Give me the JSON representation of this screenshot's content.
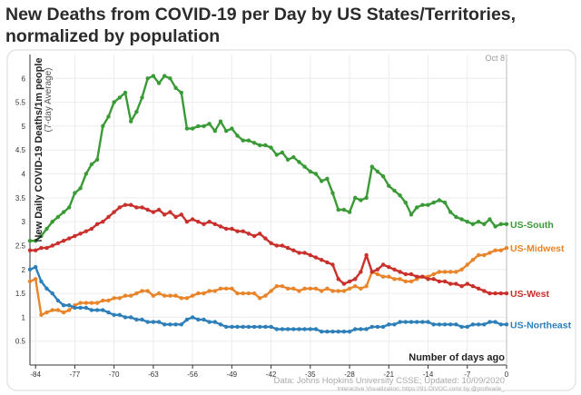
{
  "title_line1": "New Deaths from COVID-19 per Day by US States/Territories,",
  "title_line2": "normalized by population",
  "chart_data": {
    "type": "line",
    "title": "New Deaths from COVID-19 per Day by US States/Territories, normalized by population",
    "ylabel": "New Daily COVID-19 Deaths/1m people",
    "ylabel_sub": "(7-day Average)",
    "xlabel": "Number of days ago",
    "date_label": "Oct 8",
    "source": "Data: Johns Hopkins University CSSE; Updated: 10/09/2020",
    "credit": "Interactive Visualization: https://91-DIVOC.com/ by @profwade_",
    "xlim": [
      -85,
      0
    ],
    "ylim": [
      0,
      6.5
    ],
    "xticks": [
      -84,
      -77,
      -70,
      -63,
      -56,
      -49,
      -42,
      -35,
      -28,
      -21,
      -14,
      -7,
      0
    ],
    "yticks": [
      0.5,
      1,
      1.5,
      2,
      2.5,
      3,
      3.5,
      4,
      4.5,
      5,
      5.5,
      6
    ],
    "x": [
      -85,
      -84,
      -83,
      -82,
      -81,
      -80,
      -79,
      -78,
      -77,
      -76,
      -75,
      -74,
      -73,
      -72,
      -71,
      -70,
      -69,
      -68,
      -67,
      -66,
      -65,
      -64,
      -63,
      -62,
      -61,
      -60,
      -59,
      -58,
      -57,
      -56,
      -55,
      -54,
      -53,
      -52,
      -51,
      -50,
      -49,
      -48,
      -47,
      -46,
      -45,
      -44,
      -43,
      -42,
      -41,
      -40,
      -39,
      -38,
      -37,
      -36,
      -35,
      -34,
      -33,
      -32,
      -31,
      -30,
      -29,
      -28,
      -27,
      -26,
      -25,
      -24,
      -23,
      -22,
      -21,
      -20,
      -19,
      -18,
      -17,
      -16,
      -15,
      -14,
      -13,
      -12,
      -11,
      -10,
      -9,
      -8,
      -7,
      -6,
      -5,
      -4,
      -3,
      -2,
      -1,
      0
    ],
    "series": [
      {
        "name": "US-South",
        "color": "#3a9a36",
        "values": [
          2.6,
          2.6,
          2.7,
          2.85,
          3.0,
          3.1,
          3.2,
          3.3,
          3.6,
          3.7,
          4.0,
          4.2,
          4.3,
          5.0,
          5.2,
          5.5,
          5.6,
          5.7,
          5.1,
          5.3,
          5.6,
          6.0,
          6.05,
          5.9,
          6.05,
          6.0,
          5.8,
          5.7,
          4.95,
          4.95,
          5.0,
          5.0,
          5.05,
          4.9,
          5.1,
          4.9,
          4.95,
          4.8,
          4.7,
          4.7,
          4.65,
          4.6,
          4.6,
          4.55,
          4.4,
          4.45,
          4.3,
          4.35,
          4.25,
          4.15,
          4.05,
          4.0,
          3.85,
          3.9,
          3.6,
          3.25,
          3.25,
          3.2,
          3.5,
          3.45,
          3.5,
          4.15,
          4.05,
          3.95,
          3.75,
          3.65,
          3.55,
          3.4,
          3.15,
          3.3,
          3.35,
          3.35,
          3.4,
          3.45,
          3.4,
          3.2,
          3.1,
          3.05,
          3.0,
          2.95,
          3.0,
          2.95,
          3.05,
          2.9,
          2.95,
          2.95
        ]
      },
      {
        "name": "US-Midwest",
        "color": "#e8852a",
        "values": [
          1.75,
          1.8,
          1.05,
          1.1,
          1.15,
          1.15,
          1.1,
          1.15,
          1.25,
          1.3,
          1.3,
          1.3,
          1.3,
          1.35,
          1.35,
          1.4,
          1.4,
          1.45,
          1.45,
          1.5,
          1.55,
          1.55,
          1.45,
          1.5,
          1.45,
          1.45,
          1.45,
          1.4,
          1.4,
          1.45,
          1.5,
          1.5,
          1.55,
          1.55,
          1.6,
          1.6,
          1.6,
          1.5,
          1.5,
          1.5,
          1.5,
          1.4,
          1.45,
          1.55,
          1.65,
          1.65,
          1.6,
          1.6,
          1.55,
          1.6,
          1.6,
          1.6,
          1.55,
          1.6,
          1.55,
          1.55,
          1.55,
          1.6,
          1.65,
          1.6,
          1.65,
          1.95,
          1.9,
          1.85,
          1.85,
          1.8,
          1.8,
          1.75,
          1.75,
          1.8,
          1.85,
          1.85,
          1.9,
          1.95,
          1.95,
          1.95,
          1.95,
          2.0,
          2.1,
          2.2,
          2.3,
          2.3,
          2.35,
          2.4,
          2.4,
          2.45
        ]
      },
      {
        "name": "US-West",
        "color": "#c9302c",
        "values": [
          2.4,
          2.4,
          2.45,
          2.45,
          2.5,
          2.55,
          2.6,
          2.65,
          2.7,
          2.75,
          2.8,
          2.85,
          2.95,
          3.0,
          3.1,
          3.2,
          3.3,
          3.35,
          3.35,
          3.3,
          3.3,
          3.25,
          3.2,
          3.25,
          3.15,
          3.2,
          3.1,
          3.15,
          3.0,
          3.05,
          3.0,
          2.95,
          3.0,
          2.95,
          2.9,
          2.85,
          2.85,
          2.8,
          2.8,
          2.75,
          2.7,
          2.75,
          2.65,
          2.55,
          2.5,
          2.5,
          2.45,
          2.4,
          2.35,
          2.35,
          2.3,
          2.25,
          2.2,
          2.15,
          2.1,
          1.8,
          1.7,
          1.75,
          1.8,
          1.95,
          2.3,
          1.95,
          2.0,
          2.1,
          2.05,
          2.0,
          1.95,
          1.9,
          1.9,
          1.85,
          1.85,
          1.8,
          1.8,
          1.75,
          1.75,
          1.7,
          1.7,
          1.65,
          1.7,
          1.65,
          1.6,
          1.55,
          1.5,
          1.5,
          1.5,
          1.5
        ]
      },
      {
        "name": "US-Northeast",
        "color": "#2c7fb8",
        "values": [
          2.0,
          2.05,
          1.75,
          1.6,
          1.5,
          1.35,
          1.25,
          1.25,
          1.2,
          1.2,
          1.2,
          1.15,
          1.15,
          1.15,
          1.1,
          1.05,
          1.05,
          1.0,
          1.0,
          0.95,
          0.95,
          0.9,
          0.9,
          0.9,
          0.85,
          0.85,
          0.85,
          0.85,
          0.95,
          1.0,
          0.95,
          0.95,
          0.9,
          0.9,
          0.85,
          0.8,
          0.8,
          0.8,
          0.8,
          0.8,
          0.8,
          0.8,
          0.8,
          0.8,
          0.75,
          0.75,
          0.75,
          0.75,
          0.75,
          0.75,
          0.75,
          0.75,
          0.7,
          0.7,
          0.7,
          0.7,
          0.7,
          0.7,
          0.75,
          0.75,
          0.75,
          0.8,
          0.8,
          0.8,
          0.85,
          0.85,
          0.9,
          0.9,
          0.9,
          0.9,
          0.9,
          0.9,
          0.85,
          0.85,
          0.85,
          0.85,
          0.85,
          0.8,
          0.8,
          0.85,
          0.85,
          0.85,
          0.9,
          0.9,
          0.85,
          0.85
        ]
      }
    ]
  }
}
